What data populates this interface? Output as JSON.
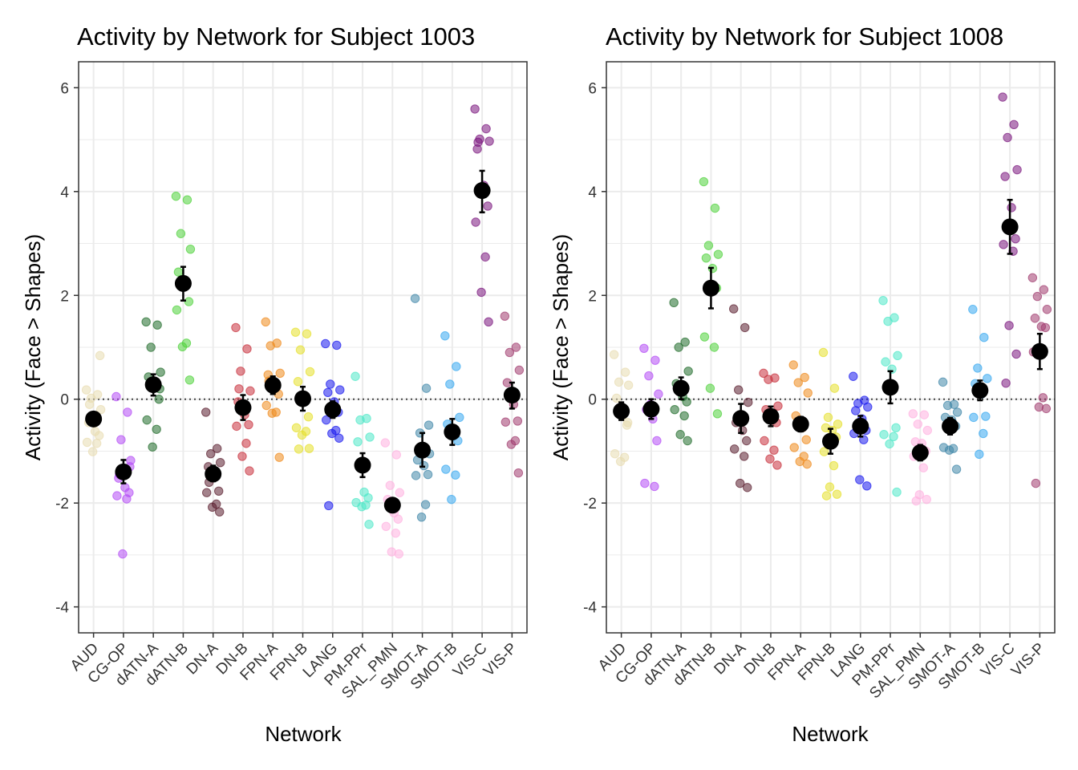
{
  "chart_data": [
    {
      "type": "scatter",
      "title": "Activity by Network for Subject 1003",
      "xlabel": "Network",
      "ylabel": "Activity (Face > Shapes)",
      "ylim": [
        -4.5,
        6.5
      ],
      "yticks": [
        -4,
        -2,
        0,
        2,
        4,
        6
      ],
      "grid": true,
      "reference_line": 0,
      "categories": [
        "AUD",
        "CG-OP",
        "dATN-A",
        "dATN-B",
        "DN-A",
        "DN-B",
        "FPN-A",
        "FPN-B",
        "LANG",
        "PM-PPr",
        "SAL_PMN",
        "SMOT-A",
        "SMOT-B",
        "VIS-C",
        "VIS-P"
      ],
      "colors": [
        "#e8dcb0",
        "#b44cf5",
        "#1f6b2a",
        "#4fd13a",
        "#5a1e2e",
        "#c8303c",
        "#ef8a1c",
        "#e6e02a",
        "#1a1aee",
        "#4fe8c8",
        "#ffb0e0",
        "#3f86a8",
        "#36a8f0",
        "#7a157e",
        "#a03a6e"
      ],
      "means": [
        -0.38,
        -1.4,
        0.28,
        2.23,
        -1.44,
        -0.16,
        0.27,
        0.01,
        -0.2,
        -1.27,
        -2.04,
        -0.98,
        -0.63,
        4.02,
        0.08
      ],
      "ci_lower": [
        -0.45,
        -1.62,
        0.07,
        1.9,
        -1.58,
        -0.4,
        0.1,
        -0.22,
        -0.36,
        -1.5,
        -2.15,
        -1.3,
        -0.88,
        3.6,
        -0.18
      ],
      "ci_upper": [
        -0.3,
        -1.17,
        0.48,
        2.55,
        -1.28,
        0.08,
        0.44,
        0.24,
        -0.04,
        -1.04,
        -1.92,
        -0.65,
        -0.38,
        4.4,
        0.32
      ],
      "points": [
        [
          0.18,
          0.09,
          0.02,
          -0.2,
          -0.45,
          -0.62,
          -0.7,
          -0.83,
          -0.85,
          -1.01,
          0.84,
          -0.1,
          -0.4
        ],
        [
          0.05,
          -0.25,
          -0.78,
          -1.18,
          -1.52,
          -1.7,
          -1.8,
          -1.86,
          -1.92,
          -2.98,
          -1.3,
          -1.45
        ],
        [
          1.49,
          1.43,
          1.0,
          0.52,
          0.43,
          0.3,
          0.0,
          -0.4,
          -0.58,
          -0.92,
          0.2
        ],
        [
          3.91,
          3.84,
          3.19,
          2.89,
          2.45,
          2.2,
          1.88,
          1.72,
          1.08,
          1.01,
          0.37
        ],
        [
          -0.25,
          -0.95,
          -1.05,
          -1.22,
          -1.3,
          -1.45,
          -1.77,
          -1.8,
          -2.02,
          -2.08,
          -2.17,
          -1.6
        ],
        [
          1.38,
          0.97,
          0.54,
          0.16,
          -0.05,
          -0.3,
          -0.49,
          -0.52,
          -0.85,
          -1.1,
          -1.38,
          0.2
        ],
        [
          1.49,
          1.08,
          1.03,
          0.5,
          0.47,
          0.22,
          0.1,
          -0.12,
          -0.25,
          -0.27,
          -1.12,
          0.35
        ],
        [
          1.29,
          1.26,
          0.95,
          0.53,
          0.34,
          0.02,
          -0.34,
          -0.55,
          -0.62,
          -0.69,
          -0.95,
          -0.96
        ],
        [
          1.07,
          1.04,
          0.29,
          0.18,
          0.13,
          -0.05,
          -0.25,
          -0.4,
          -0.6,
          -0.66,
          -0.75,
          -2.05
        ],
        [
          0.44,
          -0.37,
          -0.4,
          -0.73,
          -0.82,
          -1.79,
          -1.9,
          -1.99,
          -2.04,
          -2.07,
          -2.41
        ],
        [
          -0.84,
          -1.07,
          -1.66,
          -1.8,
          -1.93,
          -2.19,
          -2.31,
          -2.45,
          -2.58,
          -2.94,
          -2.98
        ],
        [
          1.94,
          0.21,
          -0.65,
          -1.05,
          -1.17,
          -1.28,
          -1.45,
          -1.47,
          -2.03,
          -2.27,
          -0.5
        ],
        [
          1.22,
          0.63,
          0.29,
          -0.35,
          -0.48,
          -0.68,
          -0.8,
          -1.35,
          -1.46,
          -1.93
        ],
        [
          5.59,
          5.21,
          5.01,
          4.97,
          4.82,
          4.12,
          3.72,
          3.41,
          2.74,
          2.06,
          1.49,
          4.95
        ],
        [
          1.6,
          1.0,
          0.9,
          0.56,
          0.32,
          -0.1,
          -0.42,
          -0.44,
          -0.8,
          -0.87,
          -1.42
        ]
      ]
    },
    {
      "type": "scatter",
      "title": "Activity by Network for Subject 1008",
      "xlabel": "Network",
      "ylabel": "Activity (Face > Shapes)",
      "ylim": [
        -4.5,
        6.5
      ],
      "yticks": [
        -4,
        -2,
        0,
        2,
        4,
        6
      ],
      "grid": true,
      "reference_line": 0,
      "categories": [
        "AUD",
        "CG-OP",
        "dATN-A",
        "dATN-B",
        "DN-A",
        "DN-B",
        "FPN-A",
        "FPN-B",
        "LANG",
        "PM-PPr",
        "SAL_PMN",
        "SMOT-A",
        "SMOT-B",
        "VIS-C",
        "VIS-P"
      ],
      "colors": [
        "#e8dcb0",
        "#b44cf5",
        "#1f6b2a",
        "#4fd13a",
        "#5a1e2e",
        "#c8303c",
        "#ef8a1c",
        "#e6e02a",
        "#1a1aee",
        "#4fe8c8",
        "#ffb0e0",
        "#3f86a8",
        "#36a8f0",
        "#7a157e",
        "#a03a6e"
      ],
      "means": [
        -0.23,
        -0.19,
        0.21,
        2.14,
        -0.37,
        -0.33,
        -0.48,
        -0.81,
        -0.52,
        0.23,
        -1.03,
        -0.52,
        0.17,
        3.32,
        0.92
      ],
      "ci_lower": [
        -0.4,
        -0.38,
        0.0,
        1.75,
        -0.65,
        -0.52,
        -0.62,
        -1.05,
        -0.72,
        -0.08,
        -1.18,
        -0.68,
        -0.02,
        2.8,
        0.58
      ],
      "ci_upper": [
        -0.06,
        0.0,
        0.42,
        2.53,
        -0.09,
        -0.14,
        -0.34,
        -0.57,
        -0.32,
        0.54,
        -0.88,
        -0.36,
        0.36,
        3.84,
        1.26
      ],
      "points": [
        [
          0.86,
          0.52,
          0.33,
          0.27,
          0.02,
          -0.3,
          -0.5,
          -1.05,
          -1.12,
          -1.2,
          -0.45
        ],
        [
          0.98,
          0.75,
          0.45,
          0.1,
          -0.2,
          -0.38,
          -0.8,
          -1.62,
          -1.68,
          -0.1
        ],
        [
          1.86,
          1.1,
          1.0,
          0.54,
          0.3,
          0.05,
          -0.05,
          -0.2,
          -0.32,
          -0.68,
          -0.8
        ],
        [
          4.19,
          3.68,
          2.96,
          2.79,
          2.72,
          2.52,
          2.14,
          1.2,
          1.0,
          0.21,
          -0.28
        ],
        [
          1.74,
          1.38,
          0.18,
          -0.06,
          -0.45,
          -0.6,
          -0.8,
          -0.96,
          -1.1,
          -1.62,
          -1.7
        ],
        [
          0.5,
          0.41,
          0.38,
          -0.13,
          -0.2,
          -0.38,
          -0.45,
          -0.8,
          -0.98,
          -1.15,
          -1.27
        ],
        [
          0.66,
          0.42,
          0.32,
          0.12,
          -0.32,
          -0.55,
          -0.78,
          -0.93,
          -1.1,
          -1.2,
          -1.25
        ],
        [
          0.9,
          0.21,
          -0.35,
          -0.48,
          -0.55,
          -0.6,
          -0.73,
          -1.01,
          -1.28,
          -1.69,
          -1.83,
          -1.86
        ],
        [
          0.44,
          -0.02,
          -0.08,
          -0.15,
          -0.22,
          -0.38,
          -0.6,
          -0.66,
          -0.78,
          -1.55,
          -1.67
        ],
        [
          1.9,
          1.57,
          1.5,
          0.84,
          0.72,
          0.58,
          -0.55,
          -0.68,
          -0.72,
          -0.86,
          -1.79
        ],
        [
          -0.28,
          -0.3,
          -0.48,
          -0.6,
          -0.82,
          -0.85,
          -1.0,
          -1.1,
          -1.32,
          -1.84,
          -1.93,
          -1.96
        ],
        [
          0.33,
          -0.1,
          -0.12,
          -0.25,
          -0.35,
          -0.4,
          -0.52,
          -0.93,
          -0.95,
          -0.98,
          -1.35
        ],
        [
          1.73,
          1.19,
          0.6,
          0.4,
          0.3,
          0.1,
          -0.33,
          -0.35,
          -0.66,
          -1.06
        ],
        [
          5.82,
          5.29,
          5.04,
          4.42,
          4.29,
          3.69,
          3.09,
          2.98,
          2.85,
          1.42,
          0.87,
          0.31
        ],
        [
          2.34,
          2.11,
          1.98,
          1.73,
          1.56,
          1.4,
          1.38,
          0.91,
          0.03,
          -0.15,
          -0.18,
          -1.62
        ]
      ]
    }
  ]
}
